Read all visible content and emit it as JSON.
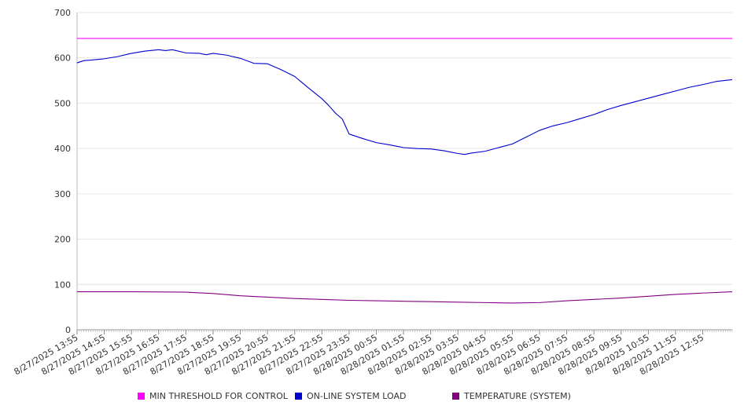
{
  "chart_data": {
    "type": "line",
    "ylim": [
      0,
      700
    ],
    "y_ticks": [
      0,
      100,
      200,
      300,
      400,
      500,
      600,
      700
    ],
    "x_tick_labels": [
      "8/27/2025 13:55",
      "8/27/2025 14:55",
      "8/27/2025 15:55",
      "8/27/2025 16:55",
      "8/27/2025 17:55",
      "8/27/2025 18:55",
      "8/27/2025 19:55",
      "8/27/2025 20:55",
      "8/27/2025 21:55",
      "8/27/2025 22:55",
      "8/27/2025 23:55",
      "8/28/2025 00:55",
      "8/28/2025 01:55",
      "8/28/2025 02:55",
      "8/28/2025 03:55",
      "8/28/2025 04:55",
      "8/28/2025 05:55",
      "8/28/2025 06:55",
      "8/28/2025 07:55",
      "8/28/2025 08:55",
      "8/28/2025 09:55",
      "8/28/2025 10:55",
      "8/28/2025 11:55",
      "8/28/2025 12:55"
    ],
    "x_end": "8/28/2025 14:00",
    "grid": true,
    "legend_position": "bottom",
    "series": [
      {
        "name": "MIN THRESHOLD FOR CONTROL",
        "color": "#ff00ff",
        "x": [
          "8/27/2025 13:55",
          "8/28/2025 14:00"
        ],
        "y": [
          643,
          643
        ]
      },
      {
        "name": "ON-LINE SYSTEM LOAD",
        "color": "#0000cc",
        "x": [
          "8/27/2025 13:55",
          "8/27/2025 14:10",
          "8/27/2025 14:25",
          "8/27/2025 14:55",
          "8/27/2025 15:25",
          "8/27/2025 15:55",
          "8/27/2025 16:25",
          "8/27/2025 16:55",
          "8/27/2025 17:10",
          "8/27/2025 17:25",
          "8/27/2025 17:55",
          "8/27/2025 18:25",
          "8/27/2025 18:40",
          "8/27/2025 18:55",
          "8/27/2025 19:25",
          "8/27/2025 19:55",
          "8/27/2025 20:25",
          "8/27/2025 20:55",
          "8/27/2025 21:25",
          "8/27/2025 21:55",
          "8/27/2025 22:25",
          "8/27/2025 22:55",
          "8/27/2025 23:10",
          "8/27/2025 23:25",
          "8/27/2025 23:40",
          "8/27/2025 23:55",
          "8/28/2025 00:25",
          "8/28/2025 00:55",
          "8/28/2025 01:25",
          "8/28/2025 01:55",
          "8/28/2025 02:25",
          "8/28/2025 02:55",
          "8/28/2025 03:25",
          "8/28/2025 03:55",
          "8/28/2025 04:10",
          "8/28/2025 04:25",
          "8/28/2025 04:55",
          "8/28/2025 05:25",
          "8/28/2025 05:55",
          "8/28/2025 06:25",
          "8/28/2025 06:55",
          "8/28/2025 07:25",
          "8/28/2025 07:55",
          "8/28/2025 08:25",
          "8/28/2025 08:55",
          "8/28/2025 09:25",
          "8/28/2025 09:55",
          "8/28/2025 10:25",
          "8/28/2025 10:55",
          "8/28/2025 11:25",
          "8/28/2025 11:55",
          "8/28/2025 12:25",
          "8/28/2025 12:55",
          "8/28/2025 13:25",
          "8/28/2025 14:00"
        ],
        "y": [
          589,
          594,
          595,
          598,
          603,
          610,
          615,
          618,
          616,
          618,
          611,
          610,
          607,
          610,
          606,
          599,
          588,
          587,
          574,
          559,
          534,
          510,
          495,
          478,
          465,
          432,
          422,
          413,
          408,
          402,
          400,
          399,
          395,
          389,
          387,
          390,
          394,
          402,
          410,
          425,
          440,
          450,
          457,
          466,
          475,
          486,
          495,
          503,
          511,
          519,
          527,
          535,
          541,
          548,
          552
        ]
      },
      {
        "name": "TEMPERATURE (SYSTEM)",
        "color": "#800080",
        "x": [
          "8/27/2025 13:55",
          "8/27/2025 15:55",
          "8/27/2025 17:55",
          "8/27/2025 18:55",
          "8/27/2025 19:55",
          "8/27/2025 20:55",
          "8/27/2025 21:55",
          "8/27/2025 22:55",
          "8/27/2025 23:55",
          "8/28/2025 00:55",
          "8/28/2025 01:55",
          "8/28/2025 02:55",
          "8/28/2025 03:55",
          "8/28/2025 04:55",
          "8/28/2025 05:55",
          "8/28/2025 06:55",
          "8/28/2025 07:55",
          "8/28/2025 08:55",
          "8/28/2025 09:55",
          "8/28/2025 10:55",
          "8/28/2025 11:55",
          "8/28/2025 12:55",
          "8/28/2025 14:00"
        ],
        "y": [
          84,
          84,
          83,
          80,
          75,
          72,
          69,
          67,
          65,
          64,
          63,
          62,
          61,
          60,
          59,
          60,
          64,
          67,
          70,
          74,
          78,
          81,
          84
        ]
      }
    ]
  }
}
